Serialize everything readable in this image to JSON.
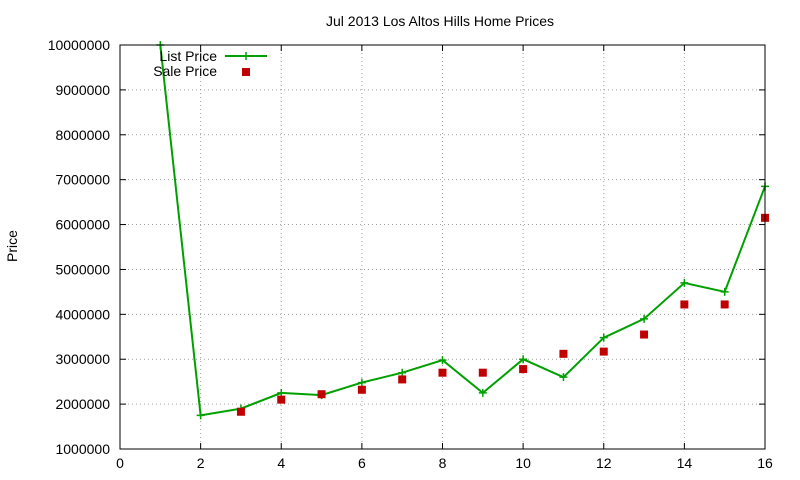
{
  "chart_data": {
    "type": "line",
    "title": "Jul 2013 Los Altos Hills Home Prices",
    "xlabel": "",
    "ylabel": "Price",
    "xlim": [
      0,
      16
    ],
    "ylim": [
      1000000,
      10000000
    ],
    "xticks": [
      0,
      2,
      4,
      6,
      8,
      10,
      12,
      14,
      16
    ],
    "yticks": [
      1000000,
      2000000,
      3000000,
      4000000,
      5000000,
      6000000,
      7000000,
      8000000,
      9000000,
      10000000
    ],
    "grid": true,
    "legend_position": "top-left",
    "series": [
      {
        "name": "List Price",
        "style": "line+plus",
        "color": "#00a000",
        "x": [
          1,
          2,
          3,
          4,
          5,
          6,
          7,
          8,
          9,
          10,
          11,
          12,
          13,
          14,
          15,
          16
        ],
        "y": [
          10000000,
          1750000,
          1900000,
          2250000,
          2200000,
          2480000,
          2700000,
          2980000,
          2250000,
          3000000,
          2600000,
          3480000,
          3900000,
          4700000,
          4500000,
          6850000
        ]
      },
      {
        "name": "Sale Price",
        "style": "square",
        "color": "#c00000",
        "x": [
          3,
          4,
          5,
          6,
          7,
          8,
          9,
          10,
          11,
          12,
          13,
          14,
          15,
          16
        ],
        "y": [
          1830000,
          2100000,
          2220000,
          2320000,
          2550000,
          2700000,
          2700000,
          2780000,
          3120000,
          3170000,
          3550000,
          4220000,
          4220000,
          6150000
        ]
      }
    ]
  }
}
